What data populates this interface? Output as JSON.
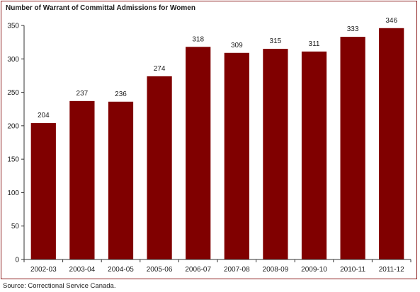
{
  "chart_data": {
    "type": "bar",
    "title": "Number of Warrant of Committal Admissions for Women",
    "categories": [
      "2002-03",
      "2003-04",
      "2004-05",
      "2005-06",
      "2006-07",
      "2007-08",
      "2008-09",
      "2009-10",
      "2010-11",
      "2011-12"
    ],
    "values": [
      204,
      237,
      236,
      274,
      318,
      309,
      315,
      311,
      333,
      346
    ],
    "ylim": [
      0,
      350
    ],
    "yticks": [
      0,
      50,
      100,
      150,
      200,
      250,
      300,
      350
    ],
    "xlabel": "",
    "ylabel": "",
    "grid": false,
    "data_labels": true,
    "bar_color": "#800000"
  },
  "source": "Source:  Correctional Service Canada."
}
